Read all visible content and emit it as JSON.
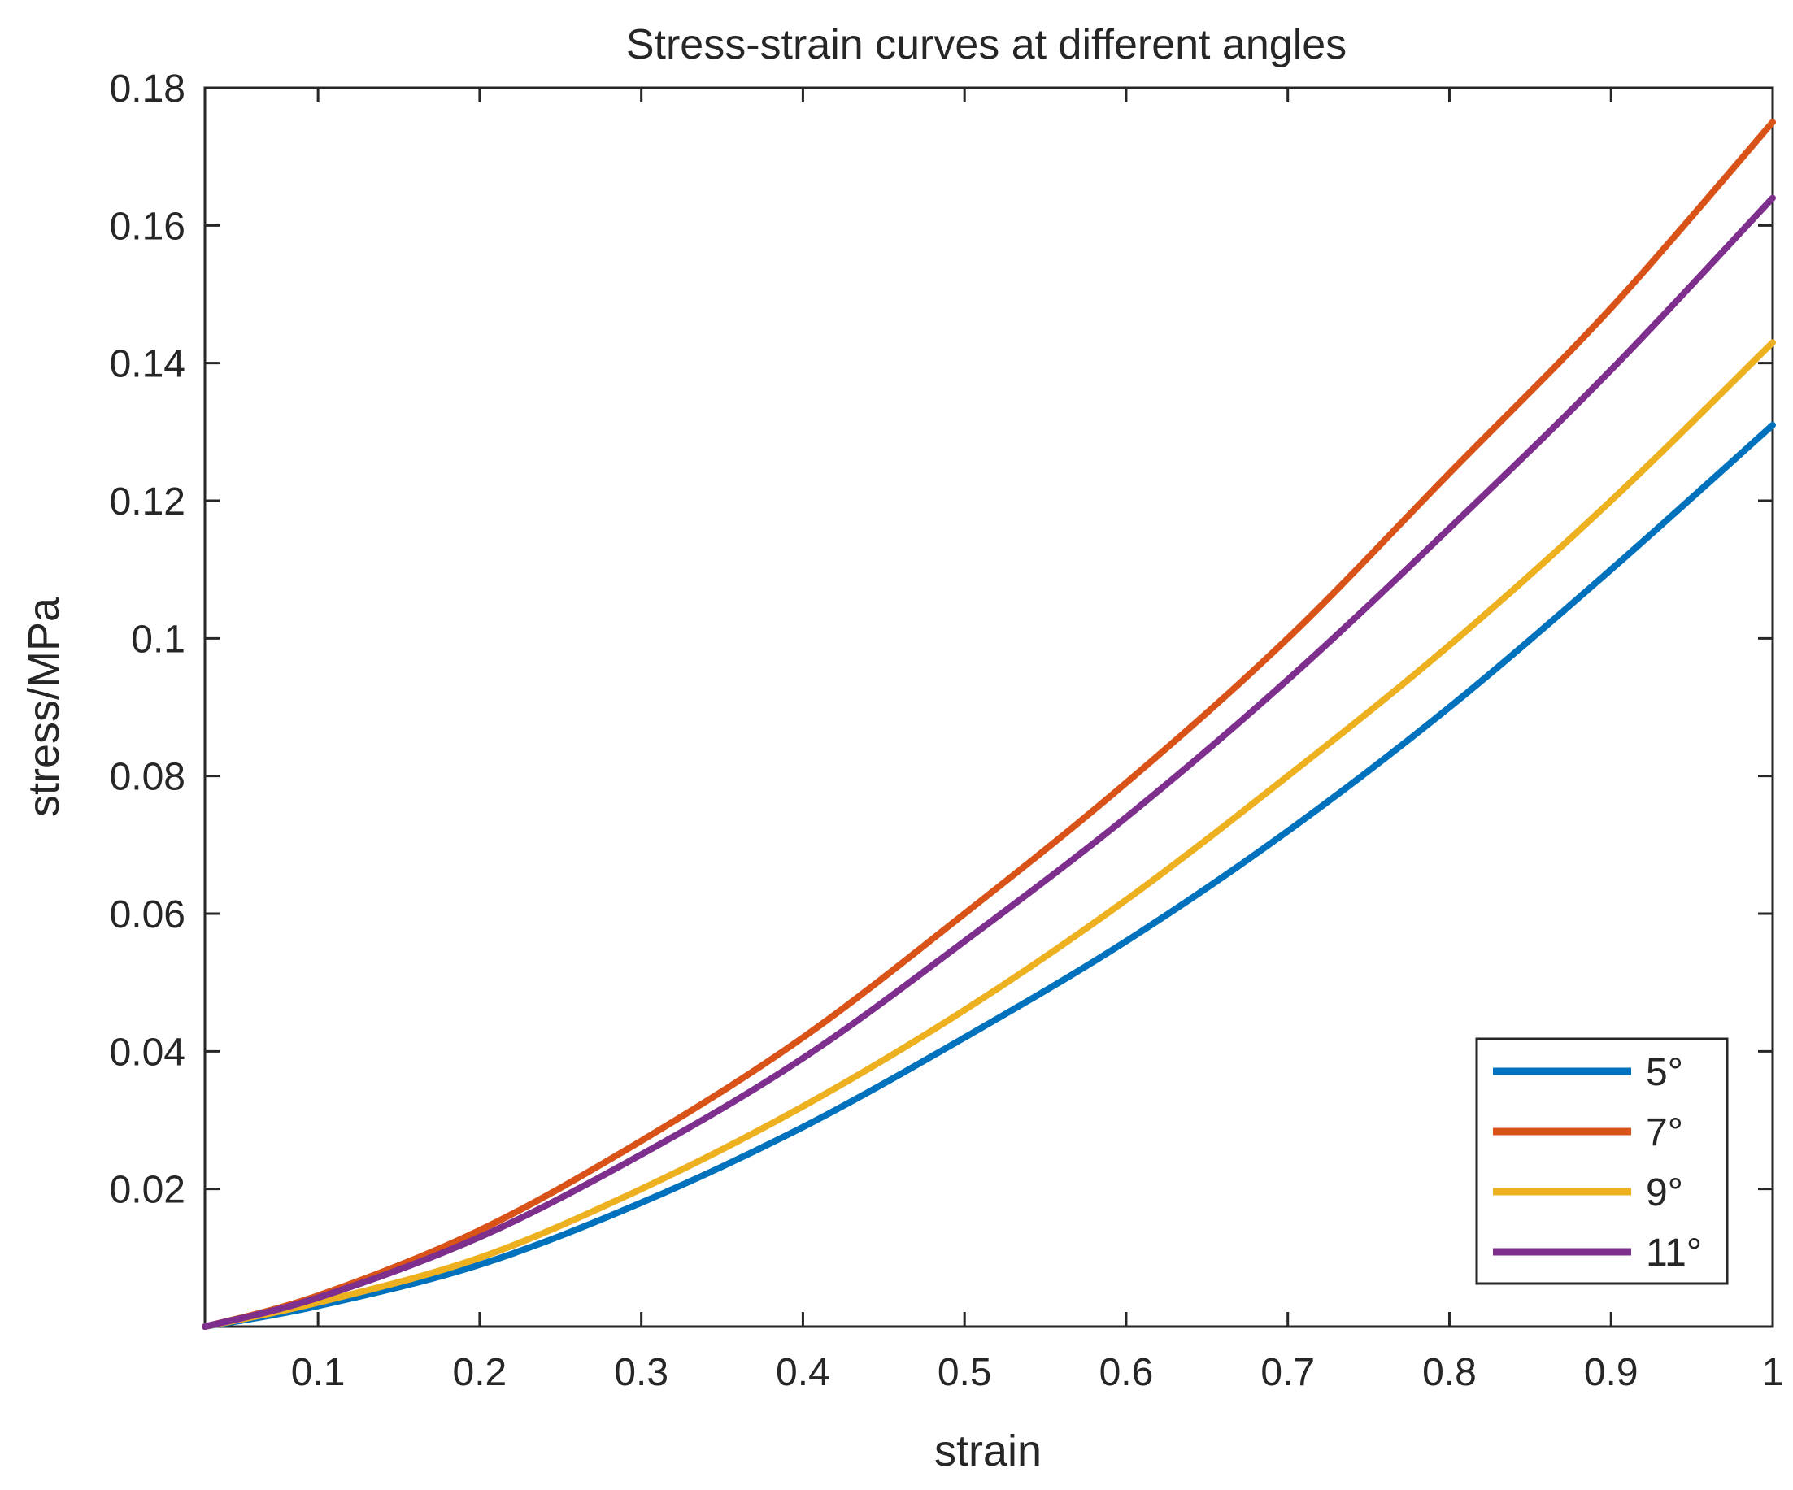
{
  "chart_data": {
    "type": "line",
    "title": "Stress-strain curves at different angles",
    "xlabel": "strain",
    "ylabel": "stress/MPa",
    "xlim": [
      0.03,
      1.0
    ],
    "ylim": [
      0.0,
      0.18
    ],
    "xticks": [
      0.1,
      0.2,
      0.3,
      0.4,
      0.5,
      0.6,
      0.7,
      0.8,
      0.9,
      1.0
    ],
    "xtick_labels": [
      "0.1",
      "0.2",
      "0.3",
      "0.4",
      "0.5",
      "0.6",
      "0.7",
      "0.8",
      "0.9",
      "1"
    ],
    "yticks": [
      0.02,
      0.04,
      0.06,
      0.08,
      0.1,
      0.12,
      0.14,
      0.16,
      0.18
    ],
    "ytick_labels": [
      "0.02",
      "0.04",
      "0.06",
      "0.08",
      "0.1",
      "0.12",
      "0.14",
      "0.16",
      "0.18"
    ],
    "grid": false,
    "legend_position": "bottom-right",
    "x": [
      0.03,
      0.1,
      0.2,
      0.3,
      0.4,
      0.5,
      0.6,
      0.7,
      0.8,
      0.9,
      1.0
    ],
    "series": [
      {
        "name": "5°",
        "color": "#0072BD",
        "values": [
          0.0,
          0.003,
          0.009,
          0.018,
          0.029,
          0.042,
          0.056,
          0.072,
          0.09,
          0.11,
          0.131
        ]
      },
      {
        "name": "7°",
        "color": "#D95319",
        "values": [
          0.0,
          0.0045,
          0.014,
          0.027,
          0.042,
          0.06,
          0.079,
          0.1,
          0.124,
          0.148,
          0.175
        ]
      },
      {
        "name": "9°",
        "color": "#EDB120",
        "values": [
          0.0,
          0.0035,
          0.01,
          0.02,
          0.032,
          0.046,
          0.062,
          0.08,
          0.099,
          0.12,
          0.143
        ]
      },
      {
        "name": "11°",
        "color": "#7E2F8E",
        "values": [
          0.0,
          0.0042,
          0.013,
          0.025,
          0.039,
          0.056,
          0.074,
          0.094,
          0.116,
          0.139,
          0.164
        ]
      }
    ]
  }
}
